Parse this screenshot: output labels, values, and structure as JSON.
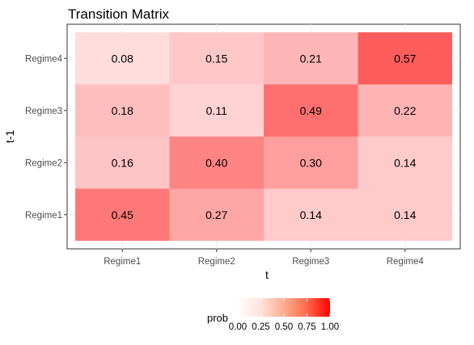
{
  "chart_data": {
    "type": "heatmap",
    "title": "Transition Matrix",
    "xlabel": "t",
    "ylabel": "t-1",
    "x_categories": [
      "Regime1",
      "Regime2",
      "Regime3",
      "Regime4"
    ],
    "y_categories": [
      "Regime1",
      "Regime2",
      "Regime3",
      "Regime4"
    ],
    "values": [
      [
        0.45,
        0.27,
        0.14,
        0.14
      ],
      [
        0.16,
        0.4,
        0.3,
        0.14
      ],
      [
        0.18,
        0.11,
        0.49,
        0.22
      ],
      [
        0.08,
        0.15,
        0.21,
        0.57
      ]
    ],
    "legend": {
      "title": "prob",
      "position": "bottom",
      "ticks": [
        0.0,
        0.25,
        0.5,
        0.75,
        1.0
      ],
      "tick_labels": [
        "0.00",
        "0.25",
        "0.50",
        "0.75",
        "1.00"
      ],
      "range": [
        0,
        1
      ]
    },
    "color_low": "#ffffff",
    "color_high": "#ff0000",
    "grid": true
  }
}
